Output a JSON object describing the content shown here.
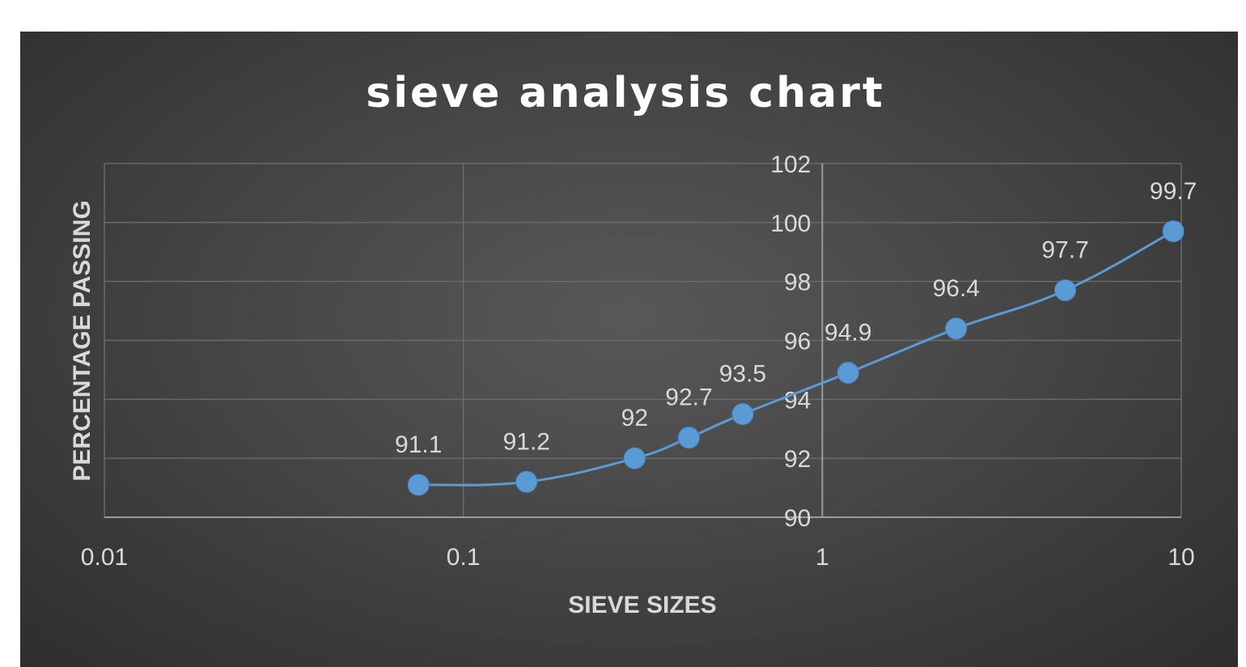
{
  "chart_data": {
    "type": "scatter",
    "title": "sieve analysis chart",
    "xlabel": "SIEVE SIZES",
    "ylabel": "PERCENTAGE PASSING",
    "x_scale": "log",
    "xlim": [
      0.01,
      10
    ],
    "ylim": [
      90,
      102
    ],
    "x_ticks": [
      "0.01",
      "0.1",
      "1",
      "10"
    ],
    "y_ticks": [
      "90",
      "92",
      "94",
      "96",
      "98",
      "100",
      "102"
    ],
    "grid": true,
    "legend": "none",
    "line_style": "smooth",
    "colors": {
      "series": "#5b9bd5",
      "marker": "#5b9bd5",
      "background": "#404040",
      "grid": "#6a6a6a"
    },
    "series": [
      {
        "x": [
          0.075,
          0.15,
          0.3,
          0.425,
          0.6,
          1.18,
          2.36,
          4.75,
          9.5
        ],
        "values": [
          91.1,
          91.2,
          92,
          92.7,
          93.5,
          94.9,
          96.4,
          97.7,
          99.7
        ],
        "data_labels": [
          "91.1",
          "91.2",
          "92",
          "92.7",
          "93.5",
          "94.9",
          "96.4",
          "97.7",
          "99.7"
        ]
      }
    ]
  }
}
